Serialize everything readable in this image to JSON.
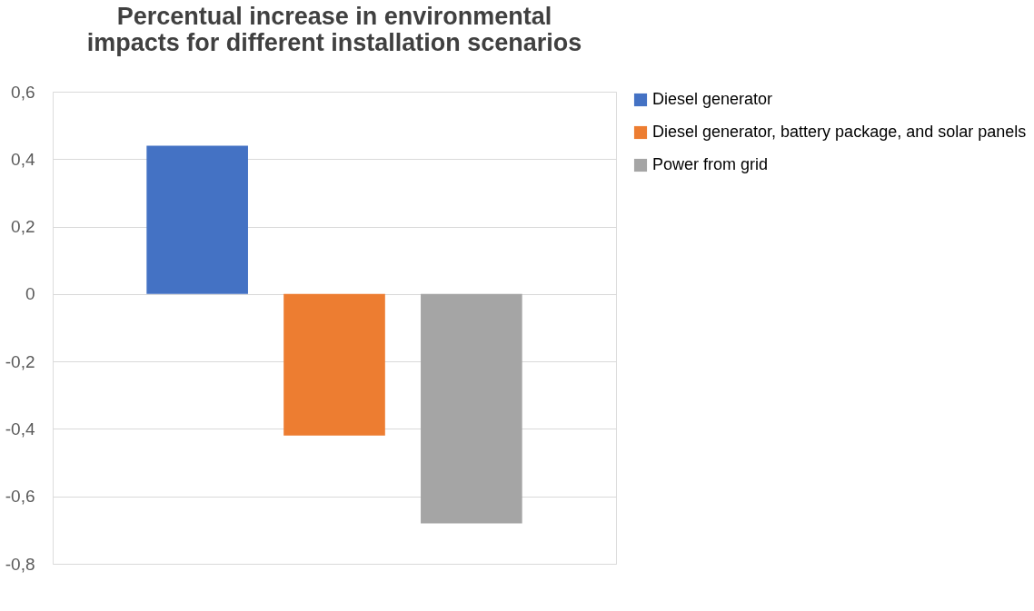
{
  "chart_data": {
    "type": "bar",
    "title": "Percentual increase in environmental impacts for different installation scenarios",
    "categories": [
      null
    ],
    "series": [
      {
        "name": "Diesel generator",
        "color": "#4472c4",
        "values": [
          0.44
        ]
      },
      {
        "name": "Diesel generator, battery package, and solar panels",
        "color": "#ed7d31",
        "values": [
          -0.42
        ]
      },
      {
        "name": "Power from grid",
        "color": "#a5a5a5",
        "values": [
          -0.68
        ]
      }
    ],
    "ylim": [
      -0.8,
      0.6
    ],
    "yticks": [
      {
        "value": -0.8,
        "label": "-0,8"
      },
      {
        "value": -0.6,
        "label": "-0,6"
      },
      {
        "value": -0.4,
        "label": "-0,4"
      },
      {
        "value": -0.2,
        "label": "-0,2"
      },
      {
        "value": 0,
        "label": "0"
      },
      {
        "value": 0.2,
        "label": "0,2"
      },
      {
        "value": 0.4,
        "label": "0,4"
      },
      {
        "value": 0.6,
        "label": "0,6"
      }
    ],
    "grid": "y",
    "legend": "right",
    "tick_labels": "y"
  }
}
